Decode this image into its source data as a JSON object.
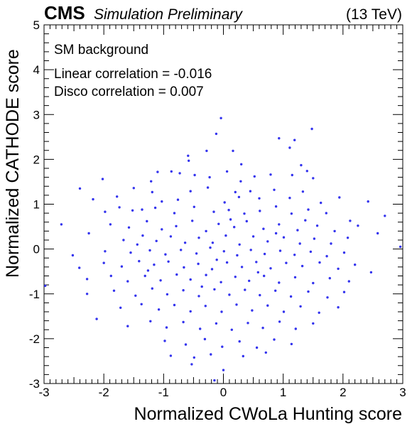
{
  "header": {
    "experiment": "CMS",
    "status": "Simulation Preliminary",
    "energy": "(13 TeV)"
  },
  "legend": {
    "sample": "SM background",
    "linear": "Linear correlation = -0.016",
    "disco": "Disco correlation = 0.007"
  },
  "colors": {
    "points": "#3333ee",
    "frame": "#000000"
  },
  "chart_data": {
    "type": "scatter",
    "xlabel": "Normalized CWoLa Hunting score",
    "ylabel": "Normalized CATHODE score",
    "xlim": [
      -3,
      3
    ],
    "ylim": [
      -3,
      5
    ],
    "xticks": [
      -3,
      -2,
      -1,
      0,
      1,
      2,
      3
    ],
    "yticks": [
      -3,
      -2,
      -1,
      0,
      1,
      2,
      3,
      4,
      5
    ],
    "grid": false,
    "legend_position": "top-left",
    "series": [
      {
        "points": [
          [
            -0.04,
            2.92
          ],
          [
            -0.12,
            2.57
          ],
          [
            1.48,
            2.68
          ],
          [
            0.93,
            2.47
          ],
          [
            1.19,
            2.43
          ],
          [
            -0.59,
            2.08
          ],
          [
            -0.28,
            2.19
          ],
          [
            0.16,
            2.19
          ],
          [
            -0.58,
            1.97
          ],
          [
            0.3,
            1.89
          ],
          [
            1.3,
            1.87
          ],
          [
            1.11,
            2.26
          ],
          [
            -1.1,
            1.72
          ],
          [
            -1.21,
            1.51
          ],
          [
            -0.87,
            1.73
          ],
          [
            -0.73,
            1.69
          ],
          [
            -0.48,
            1.65
          ],
          [
            -0.23,
            1.6
          ],
          [
            0.06,
            1.73
          ],
          [
            0.29,
            1.51
          ],
          [
            0.52,
            1.62
          ],
          [
            0.79,
            1.66
          ],
          [
            1.15,
            1.65
          ],
          [
            1.4,
            1.74
          ],
          [
            1.5,
            1.58
          ],
          [
            -1.5,
            1.36
          ],
          [
            -1.19,
            1.27
          ],
          [
            -1.03,
            1.06
          ],
          [
            -0.55,
            1.29
          ],
          [
            -0.26,
            1.37
          ],
          [
            0.02,
            1.04
          ],
          [
            0.2,
            1.27
          ],
          [
            0.45,
            1.29
          ],
          [
            0.6,
            1.13
          ],
          [
            0.85,
            1.32
          ],
          [
            1.11,
            1.14
          ],
          [
            1.33,
            1.28
          ],
          [
            1.63,
            1.03
          ],
          [
            1.94,
            1.15
          ],
          [
            2.42,
            1.06
          ],
          [
            -2.4,
            1.35
          ],
          [
            -2.02,
            1.56
          ],
          [
            -1.78,
            1.17
          ],
          [
            -2.18,
            1.11
          ],
          [
            -1.98,
            0.83
          ],
          [
            -1.74,
            0.93
          ],
          [
            -1.52,
            0.86
          ],
          [
            -1.36,
            0.88
          ],
          [
            -1.14,
            0.92
          ],
          [
            -0.82,
            0.8
          ],
          [
            -0.49,
            0.94
          ],
          [
            -0.16,
            0.83
          ],
          [
            0.09,
            0.87
          ],
          [
            0.35,
            0.79
          ],
          [
            0.61,
            0.85
          ],
          [
            0.88,
            0.95
          ],
          [
            1.14,
            0.79
          ],
          [
            1.42,
            0.88
          ],
          [
            1.72,
            0.8
          ],
          [
            2.12,
            0.63
          ],
          [
            2.7,
            0.74
          ],
          [
            -2.71,
            0.55
          ],
          [
            -1.89,
            0.55
          ],
          [
            -1.58,
            0.48
          ],
          [
            -1.28,
            0.62
          ],
          [
            -1.03,
            0.44
          ],
          [
            -0.79,
            0.51
          ],
          [
            -0.52,
            0.63
          ],
          [
            -0.29,
            0.4
          ],
          [
            -0.08,
            0.56
          ],
          [
            0.18,
            0.49
          ],
          [
            0.39,
            0.62
          ],
          [
            0.67,
            0.45
          ],
          [
            0.93,
            0.55
          ],
          [
            1.24,
            0.42
          ],
          [
            1.57,
            0.52
          ],
          [
            1.86,
            0.4
          ],
          [
            2.25,
            0.52
          ],
          [
            2.58,
            0.35
          ],
          [
            -2.25,
            0.35
          ],
          [
            -1.67,
            0.2
          ],
          [
            -1.35,
            0.3
          ],
          [
            -1.12,
            0.18
          ],
          [
            -0.88,
            0.28
          ],
          [
            -0.64,
            0.14
          ],
          [
            -0.41,
            0.25
          ],
          [
            -0.18,
            0.14
          ],
          [
            0.04,
            0.3
          ],
          [
            0.27,
            0.1
          ],
          [
            0.5,
            0.28
          ],
          [
            0.74,
            0.17
          ],
          [
            1.01,
            0.26
          ],
          [
            1.28,
            0.12
          ],
          [
            1.52,
            0.23
          ],
          [
            1.8,
            0.12
          ],
          [
            2.08,
            0.25
          ],
          [
            -2.52,
            -0.14
          ],
          [
            -1.98,
            -0.05
          ],
          [
            -1.55,
            -0.08
          ],
          [
            -1.23,
            -0.03
          ],
          [
            -0.97,
            -0.12
          ],
          [
            -0.71,
            -0.02
          ],
          [
            -0.45,
            -0.1
          ],
          [
            -0.22,
            0.03
          ],
          [
            0.01,
            -0.05
          ],
          [
            0.23,
            -0.14
          ],
          [
            0.46,
            -0.02
          ],
          [
            0.69,
            -0.11
          ],
          [
            0.95,
            -0.04
          ],
          [
            1.19,
            -0.13
          ],
          [
            1.46,
            -0.06
          ],
          [
            1.73,
            -0.16
          ],
          [
            2.02,
            -0.08
          ],
          [
            2.96,
            0.05
          ],
          [
            -2.41,
            -0.42
          ],
          [
            -2.0,
            -0.31
          ],
          [
            -1.7,
            -0.39
          ],
          [
            -1.41,
            -0.27
          ],
          [
            -1.16,
            -0.35
          ],
          [
            -0.92,
            -0.28
          ],
          [
            -0.66,
            -0.41
          ],
          [
            -0.42,
            -0.33
          ],
          [
            -0.19,
            -0.45
          ],
          [
            0.06,
            -0.3
          ],
          [
            0.31,
            -0.4
          ],
          [
            0.55,
            -0.29
          ],
          [
            0.79,
            -0.43
          ],
          [
            1.05,
            -0.31
          ],
          [
            1.32,
            -0.38
          ],
          [
            1.61,
            -0.3
          ],
          [
            1.92,
            -0.44
          ],
          [
            2.2,
            -0.35
          ],
          [
            2.47,
            -0.52
          ],
          [
            -2.98,
            -0.82
          ],
          [
            -2.28,
            -0.67
          ],
          [
            -1.88,
            -0.6
          ],
          [
            -1.6,
            -0.72
          ],
          [
            -1.31,
            -0.6
          ],
          [
            -1.05,
            -0.7
          ],
          [
            -0.78,
            -0.57
          ],
          [
            -0.55,
            -0.68
          ],
          [
            -0.29,
            -0.58
          ],
          [
            -0.04,
            -0.74
          ],
          [
            0.2,
            -0.62
          ],
          [
            0.43,
            -0.71
          ],
          [
            0.68,
            -0.6
          ],
          [
            0.93,
            -0.75
          ],
          [
            1.2,
            -0.63
          ],
          [
            1.5,
            -0.76
          ],
          [
            1.78,
            -0.65
          ],
          [
            2.1,
            -0.72
          ],
          [
            -2.28,
            -1.0
          ],
          [
            -1.83,
            -0.93
          ],
          [
            -1.47,
            -1.04
          ],
          [
            -1.19,
            -0.88
          ],
          [
            -0.94,
            -1.01
          ],
          [
            -0.67,
            -0.92
          ],
          [
            -0.41,
            -1.05
          ],
          [
            -0.15,
            -0.9
          ],
          [
            0.1,
            -1.02
          ],
          [
            0.36,
            -0.91
          ],
          [
            0.61,
            -1.03
          ],
          [
            0.87,
            -0.93
          ],
          [
            1.13,
            -1.06
          ],
          [
            1.42,
            -0.95
          ],
          [
            1.74,
            -1.08
          ],
          [
            2.02,
            -0.96
          ],
          [
            -2.12,
            -1.56
          ],
          [
            -1.72,
            -1.31
          ],
          [
            -1.37,
            -1.23
          ],
          [
            -1.08,
            -1.35
          ],
          [
            -0.82,
            -1.25
          ],
          [
            -0.55,
            -1.39
          ],
          [
            -0.3,
            -1.27
          ],
          [
            -0.03,
            -1.4
          ],
          [
            0.22,
            -1.24
          ],
          [
            0.48,
            -1.37
          ],
          [
            0.74,
            -1.26
          ],
          [
            1.01,
            -1.4
          ],
          [
            1.29,
            -1.28
          ],
          [
            1.6,
            -1.42
          ],
          [
            1.92,
            -1.3
          ],
          [
            -1.6,
            -1.72
          ],
          [
            -1.22,
            -1.61
          ],
          [
            -0.95,
            -1.75
          ],
          [
            -0.67,
            -1.63
          ],
          [
            -0.39,
            -1.78
          ],
          [
            -0.12,
            -1.66
          ],
          [
            0.14,
            -1.8
          ],
          [
            0.41,
            -1.65
          ],
          [
            0.66,
            -1.76
          ],
          [
            0.94,
            -1.62
          ],
          [
            1.21,
            -1.78
          ],
          [
            1.5,
            -1.66
          ],
          [
            -0.98,
            -2.05
          ],
          [
            -0.63,
            -2.13
          ],
          [
            -0.31,
            -2.01
          ],
          [
            -0.02,
            -2.18
          ],
          [
            0.27,
            -2.06
          ],
          [
            0.56,
            -2.2
          ],
          [
            0.85,
            -2.02
          ],
          [
            1.14,
            -2.12
          ],
          [
            -0.88,
            -2.38
          ],
          [
            -0.49,
            -2.42
          ],
          [
            -0.21,
            -2.35
          ],
          [
            0.33,
            -2.39
          ],
          [
            0.71,
            -2.31
          ],
          [
            -0.53,
            -2.57
          ],
          [
            0.0,
            -2.7
          ],
          [
            -0.15,
            -2.93
          ],
          [
            -1.44,
            0.1
          ],
          [
            0.12,
            0.66
          ],
          [
            -0.36,
            -0.84
          ],
          [
            0.88,
            0.35
          ],
          [
            -0.76,
            1.1
          ],
          [
            0.58,
            -0.52
          ],
          [
            1.37,
            0.64
          ],
          [
            -1.26,
            -0.48
          ],
          [
            0.26,
            1.16
          ],
          [
            -0.11,
            -0.24
          ]
        ]
      }
    ]
  }
}
